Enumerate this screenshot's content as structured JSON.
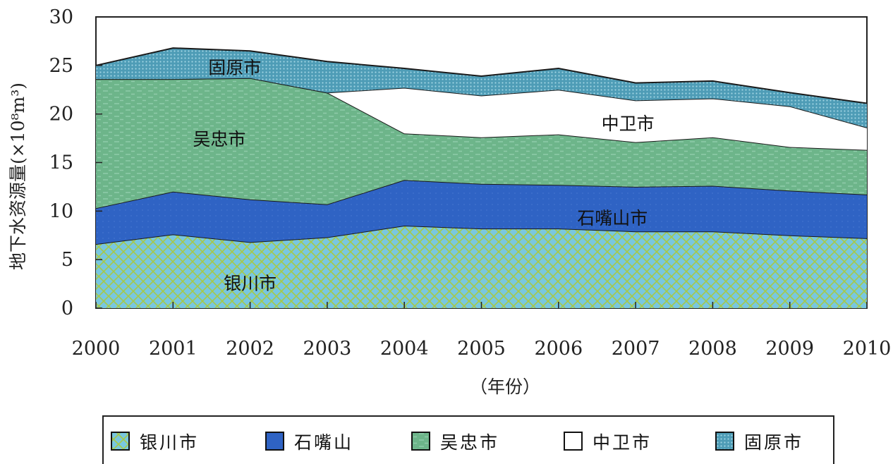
{
  "chart_data": {
    "type": "area",
    "stacked": true,
    "x": [
      2000,
      2001,
      2002,
      2003,
      2004,
      2005,
      2006,
      2007,
      2008,
      2009,
      2010
    ],
    "xlabel": "（年份）",
    "ylabel": "地下水资源量(×10⁸m³)",
    "ylim": [
      0,
      30
    ],
    "yticks": [
      0,
      5,
      10,
      15,
      20,
      25,
      30
    ],
    "legend_position": "bottom",
    "series": [
      {
        "name": "银川市",
        "values": [
          6.6,
          7.6,
          6.8,
          7.3,
          8.5,
          8.2,
          8.2,
          7.9,
          7.9,
          7.5,
          7.2
        ],
        "color": "#74c4dd",
        "pattern": "diagonal-cross"
      },
      {
        "name": "石嘴山",
        "values": [
          3.7,
          4.4,
          4.4,
          3.4,
          4.7,
          4.6,
          4.5,
          4.6,
          4.7,
          4.6,
          4.5
        ],
        "color": "#2f63c4",
        "pattern": "solid"
      },
      {
        "name": "吴忠市",
        "values": [
          13.3,
          11.6,
          12.5,
          11.5,
          4.8,
          4.8,
          5.2,
          4.6,
          5.0,
          4.5,
          4.6
        ],
        "color": "#6db58a",
        "pattern": "dashes"
      },
      {
        "name": "中卫市",
        "values": [
          0,
          0,
          0,
          0,
          4.7,
          4.3,
          4.6,
          4.3,
          4.0,
          4.2,
          2.3
        ],
        "color": "#ffffff",
        "pattern": "none"
      },
      {
        "name": "固原市",
        "values": [
          1.4,
          3.2,
          2.8,
          3.2,
          2.0,
          2.0,
          2.2,
          1.8,
          1.8,
          1.4,
          2.5
        ],
        "color": "#5fb0c7",
        "pattern": "dots"
      }
    ],
    "area_labels": [
      "银川市",
      "石嘴山市",
      "吴忠市",
      "中卫市",
      "固原市"
    ]
  },
  "legend": {
    "items": [
      "银川市",
      "石嘴山",
      "吴忠市",
      "中卫市",
      "固原市"
    ]
  }
}
